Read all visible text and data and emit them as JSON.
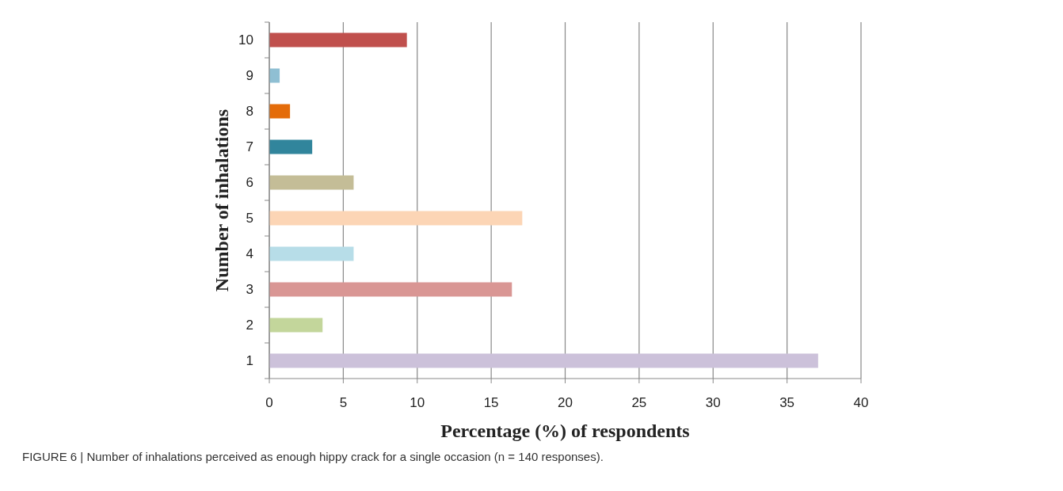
{
  "chart_data": {
    "type": "bar",
    "orientation": "horizontal",
    "xlabel": "Percentage (%) of respondents",
    "ylabel": "Number of inhalations",
    "categories": [
      "10",
      "9",
      "8",
      "7",
      "6",
      "5",
      "4",
      "3",
      "2",
      "1"
    ],
    "values": [
      9.3,
      0.7,
      1.4,
      2.9,
      5.7,
      17.1,
      5.7,
      16.4,
      3.6,
      37.1
    ],
    "colors": [
      "#c0504d",
      "#8fbfd3",
      "#e46c0a",
      "#31859c",
      "#c4bd97",
      "#fcd5b5",
      "#b7dde8",
      "#d99694",
      "#c3d69b",
      "#ccc1da"
    ],
    "xlim": [
      0,
      40
    ],
    "xticks": [
      0,
      5,
      10,
      15,
      20,
      25,
      30,
      35,
      40
    ],
    "grid": "x",
    "annotations": [
      "FIGURE 6 | Number of inhalations perceived as enough hippy crack for a single occasion (n = 140 responses)."
    ]
  }
}
